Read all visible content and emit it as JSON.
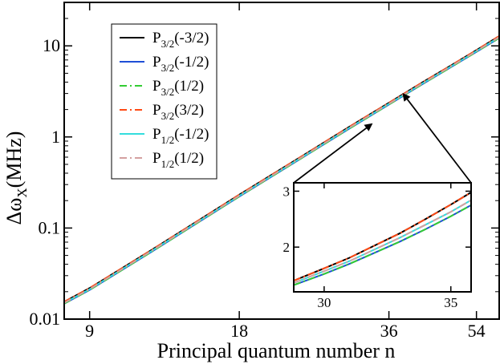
{
  "chart_data": [
    {
      "type": "line",
      "xlabel": "Principal quantum number n",
      "ylabel_main": "Δω",
      "ylabel_sub": "X",
      "ylabel_unit": "(MHz)",
      "x_scale": "log",
      "y_scale": "log",
      "xlim": [
        8,
        60
      ],
      "ylim": [
        0.01,
        30
      ],
      "xticks": [
        9,
        18,
        36,
        54
      ],
      "xtick_labels": [
        "9",
        "18",
        "36",
        "54"
      ],
      "yticks": [
        0.01,
        0.1,
        1,
        10
      ],
      "ytick_labels": [
        "0.01",
        "0.1",
        "1",
        "10"
      ],
      "grid": false,
      "legend_position": "top-left",
      "x": [
        8,
        9,
        12,
        18,
        24,
        30,
        36,
        42,
        48,
        54,
        60
      ],
      "series": [
        {
          "name_main": "P",
          "name_sub": "3/2",
          "name_suffix": "(-3/2)",
          "color": "#000000",
          "dash": "solid",
          "values": [
            0.0155,
            0.0219,
            0.0576,
            0.232,
            0.61,
            1.295,
            2.37,
            3.96,
            6.1,
            8.99,
            12.8
          ]
        },
        {
          "name_main": "P",
          "name_sub": "3/2",
          "name_suffix": "(-1/2)",
          "color": "#1f4fd6",
          "dash": "solid",
          "values": [
            0.0148,
            0.0209,
            0.055,
            0.222,
            0.583,
            1.238,
            2.27,
            3.79,
            5.84,
            8.6,
            12.2
          ]
        },
        {
          "name_main": "P",
          "name_sub": "3/2",
          "name_suffix": "(1/2)",
          "color": "#33cc33",
          "dash": "dashdot",
          "values": [
            0.0148,
            0.0209,
            0.055,
            0.222,
            0.583,
            1.238,
            2.27,
            3.79,
            5.84,
            8.6,
            12.2
          ]
        },
        {
          "name_main": "P",
          "name_sub": "3/2",
          "name_suffix": "(3/2)",
          "color": "#ff4a14",
          "dash": "dashdot",
          "values": [
            0.0155,
            0.0219,
            0.0576,
            0.232,
            0.61,
            1.295,
            2.37,
            3.96,
            6.1,
            8.99,
            12.8
          ]
        },
        {
          "name_main": "P",
          "name_sub": "1/2",
          "name_suffix": "(-1/2)",
          "color": "#33dddd",
          "dash": "solid",
          "values": [
            0.0151,
            0.0213,
            0.0561,
            0.226,
            0.594,
            1.263,
            2.31,
            3.86,
            5.95,
            8.77,
            12.45
          ]
        },
        {
          "name_main": "P",
          "name_sub": "1/2",
          "name_suffix": "(1/2)",
          "color": "#d4a0a0",
          "dash": "dashdot",
          "values": [
            0.0151,
            0.0213,
            0.0561,
            0.226,
            0.594,
            1.263,
            2.31,
            3.86,
            5.95,
            8.77,
            12.45
          ]
        }
      ],
      "arrows": [
        {
          "from": "inset",
          "to_x": 33.2,
          "to_y": 1.38
        },
        {
          "from": "inset",
          "to_x": 38.5,
          "to_y": 2.95
        }
      ]
    },
    {
      "type": "line",
      "role": "inset",
      "xlim": [
        28.8,
        35.8
      ],
      "ylim": [
        1.2,
        3.15
      ],
      "xticks": [
        30,
        35
      ],
      "xtick_labels": [
        "30",
        "35"
      ],
      "yticks": [
        2,
        3
      ],
      "ytick_labels": [
        "2",
        "3"
      ],
      "x": [
        28.8,
        30,
        31,
        32,
        33,
        34,
        35,
        35.8
      ],
      "series": [
        {
          "color": "#000000",
          "dash": "solid",
          "values": [
            1.4,
            1.62,
            1.81,
            2.03,
            2.25,
            2.5,
            2.76,
            2.98
          ]
        },
        {
          "color": "#ff4a14",
          "dash": "dashdot",
          "values": [
            1.4,
            1.62,
            1.81,
            2.03,
            2.25,
            2.5,
            2.76,
            2.98
          ]
        },
        {
          "color": "#33dddd",
          "dash": "solid",
          "values": [
            1.36,
            1.57,
            1.75,
            1.96,
            2.17,
            2.4,
            2.63,
            2.84
          ]
        },
        {
          "color": "#d4a0a0",
          "dash": "dashdot",
          "values": [
            1.36,
            1.57,
            1.75,
            1.96,
            2.17,
            2.4,
            2.63,
            2.84
          ]
        },
        {
          "color": "#1f4fd6",
          "dash": "solid",
          "values": [
            1.32,
            1.52,
            1.7,
            1.9,
            2.1,
            2.32,
            2.55,
            2.75
          ]
        },
        {
          "color": "#33cc33",
          "dash": "dashdot",
          "values": [
            1.32,
            1.52,
            1.7,
            1.9,
            2.1,
            2.32,
            2.55,
            2.75
          ]
        }
      ]
    }
  ]
}
